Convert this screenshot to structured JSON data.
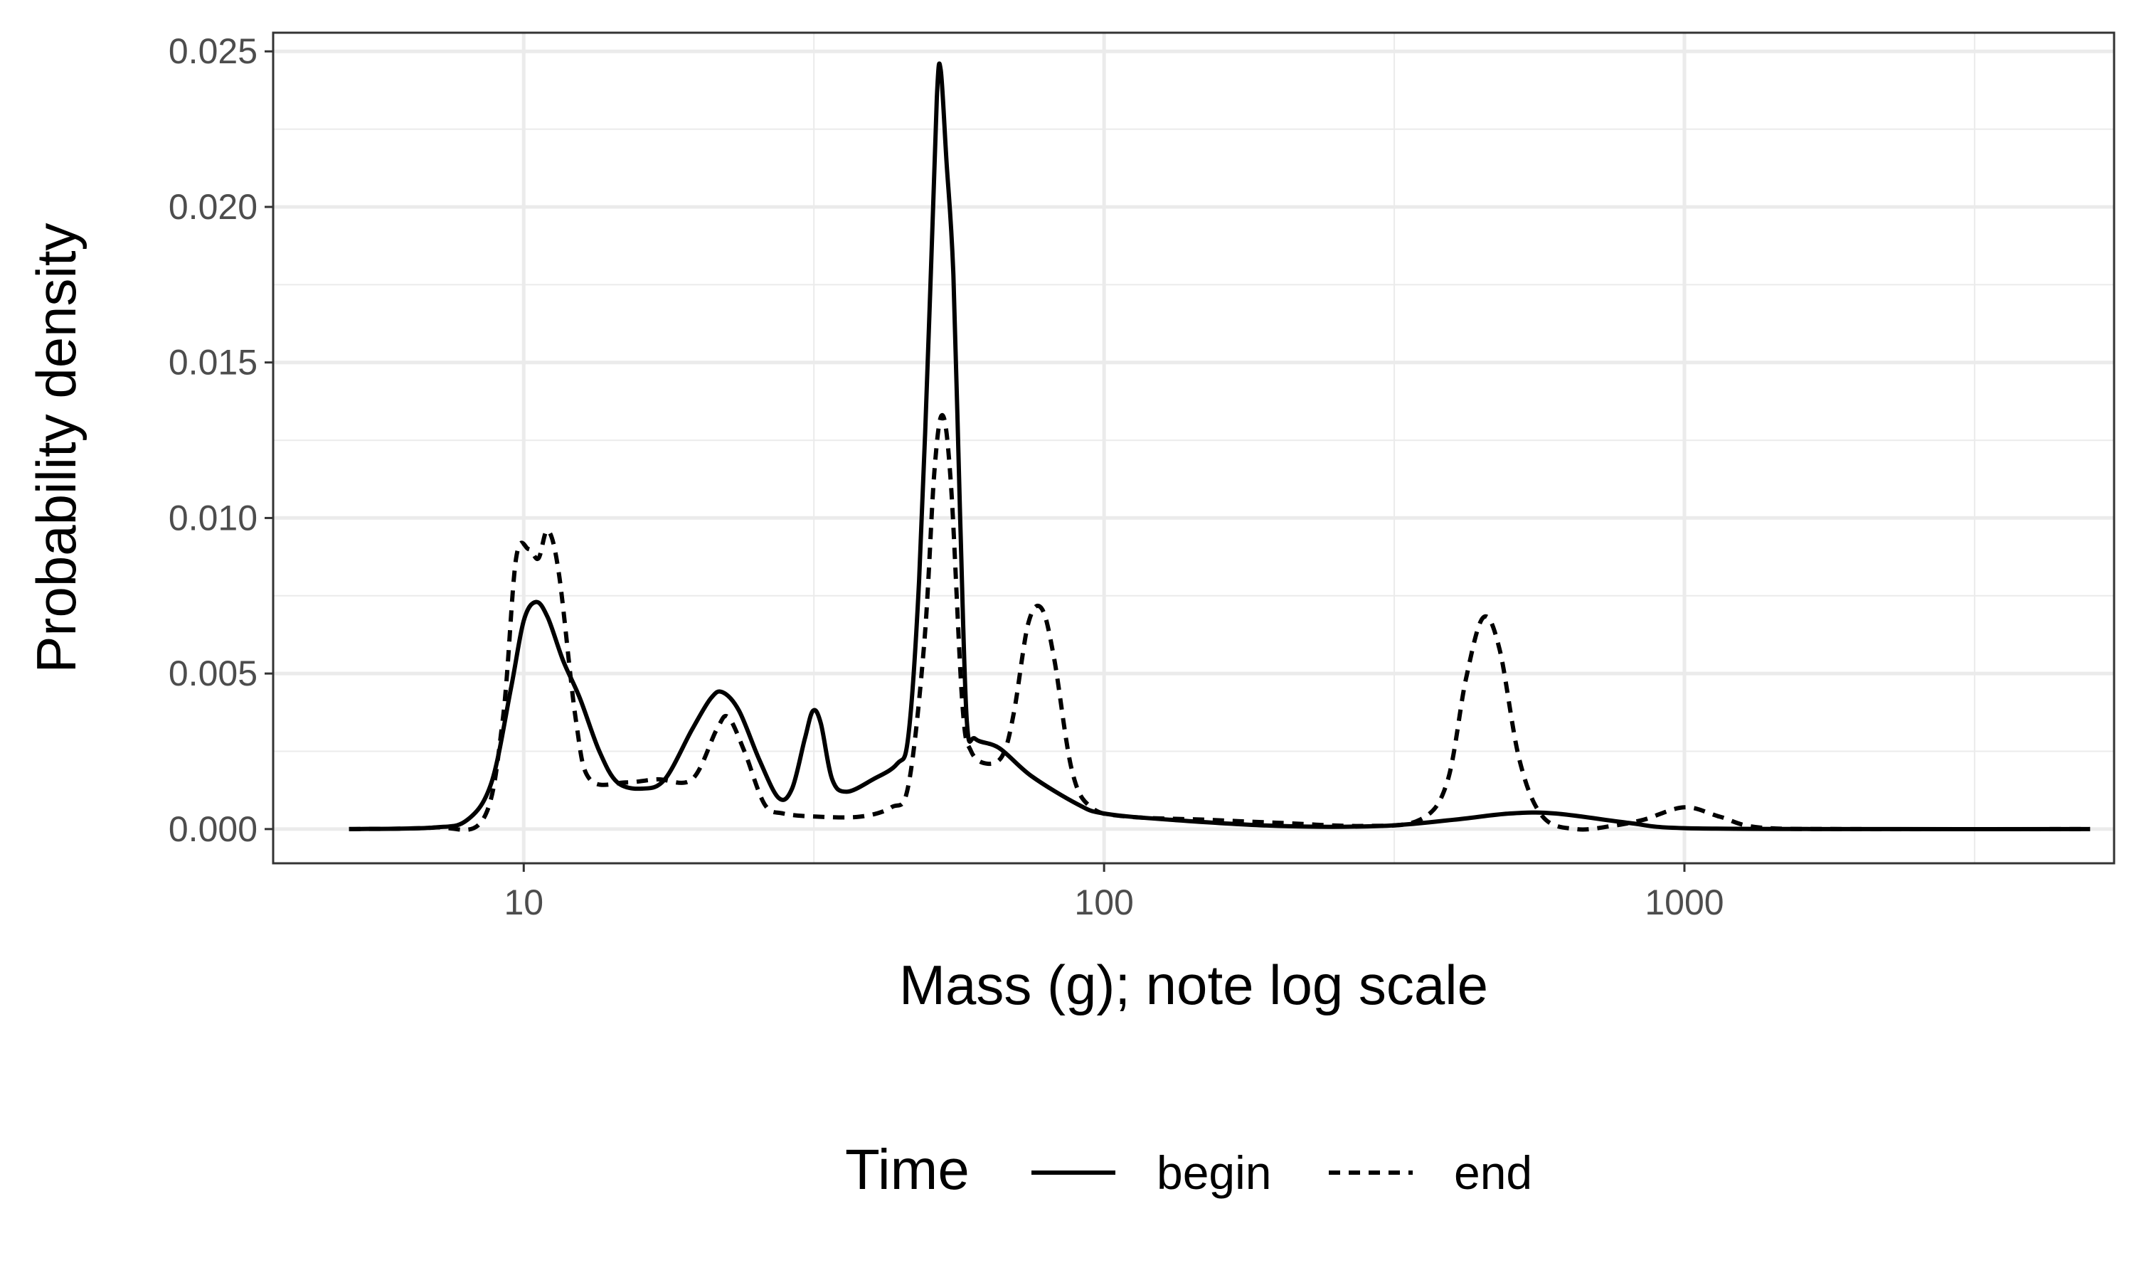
{
  "chart_data": {
    "type": "line",
    "title": "",
    "xlabel": "Mass (g); note log scale",
    "ylabel": "Probability density",
    "x_scale": "log10",
    "xlim": [
      3.7,
      5500
    ],
    "ylim": [
      -0.0011,
      0.0256
    ],
    "x_ticks": [
      10,
      100,
      1000
    ],
    "x_tick_labels": [
      "10",
      "100",
      "1000"
    ],
    "y_ticks": [
      0,
      0.005,
      0.01,
      0.015,
      0.02,
      0.025
    ],
    "y_tick_labels": [
      "0.000",
      "0.005",
      "0.010",
      "0.015",
      "0.020",
      "0.025"
    ],
    "grid": true,
    "legend": {
      "title": "Time",
      "position": "bottom"
    },
    "series": [
      {
        "name": "begin",
        "line_style": "solid",
        "color": "#000000",
        "points": [
          [
            5,
            0
          ],
          [
            7,
            5e-05
          ],
          [
            8,
            0.0003
          ],
          [
            8.8,
            0.0015
          ],
          [
            9.5,
            0.0045
          ],
          [
            10,
            0.0067
          ],
          [
            10.5,
            0.0073
          ],
          [
            11,
            0.0068
          ],
          [
            11.7,
            0.0054
          ],
          [
            12.5,
            0.0042
          ],
          [
            13.5,
            0.0025
          ],
          [
            14.5,
            0.0015
          ],
          [
            16,
            0.0013
          ],
          [
            17.5,
            0.0016
          ],
          [
            19.5,
            0.0032
          ],
          [
            21,
            0.0042
          ],
          [
            22,
            0.0044
          ],
          [
            23.5,
            0.0038
          ],
          [
            25.5,
            0.0022
          ],
          [
            27.5,
            0.001
          ],
          [
            29,
            0.0013
          ],
          [
            30.5,
            0.0029
          ],
          [
            31.5,
            0.0038
          ],
          [
            32.5,
            0.0034
          ],
          [
            34,
            0.0016
          ],
          [
            36,
            0.0012
          ],
          [
            40,
            0.0016
          ],
          [
            44,
            0.0021
          ],
          [
            46,
            0.003
          ],
          [
            48,
            0.008
          ],
          [
            50,
            0.0165
          ],
          [
            51.5,
            0.0235
          ],
          [
            52.3,
            0.0244
          ],
          [
            53.5,
            0.0215
          ],
          [
            55,
            0.0178
          ],
          [
            56.5,
            0.01
          ],
          [
            58,
            0.0035
          ],
          [
            60,
            0.0029
          ],
          [
            66,
            0.0026
          ],
          [
            75,
            0.0017
          ],
          [
            90,
            0.0008
          ],
          [
            100,
            0.0005
          ],
          [
            130,
            0.0003
          ],
          [
            200,
            0.0001
          ],
          [
            300,
            0.0001
          ],
          [
            400,
            0.0003
          ],
          [
            500,
            0.0005
          ],
          [
            600,
            0.0005
          ],
          [
            800,
            0.0002
          ],
          [
            1000,
            3e-05
          ],
          [
            2000,
            0
          ],
          [
            5000,
            0
          ]
        ]
      },
      {
        "name": "end",
        "line_style": "dashed",
        "color": "#000000",
        "points": [
          [
            5,
            0
          ],
          [
            7,
            5e-05
          ],
          [
            8.5,
            0.0003
          ],
          [
            9.2,
            0.0035
          ],
          [
            9.7,
            0.0087
          ],
          [
            10.2,
            0.009
          ],
          [
            10.6,
            0.0087
          ],
          [
            11,
            0.0096
          ],
          [
            11.5,
            0.0082
          ],
          [
            12.3,
            0.0035
          ],
          [
            13,
            0.0016
          ],
          [
            15,
            0.0015
          ],
          [
            17,
            0.0016
          ],
          [
            19.5,
            0.0016
          ],
          [
            21.5,
            0.0032
          ],
          [
            22.5,
            0.0036
          ],
          [
            24,
            0.0025
          ],
          [
            26,
            0.0008
          ],
          [
            28,
            0.0005
          ],
          [
            32,
            0.0004
          ],
          [
            38,
            0.0004
          ],
          [
            43,
            0.0007
          ],
          [
            46,
            0.0014
          ],
          [
            49,
            0.006
          ],
          [
            51,
            0.0115
          ],
          [
            52.7,
            0.0133
          ],
          [
            54.5,
            0.011
          ],
          [
            57,
            0.004
          ],
          [
            59,
            0.0025
          ],
          [
            63,
            0.0021
          ],
          [
            67,
            0.0024
          ],
          [
            70,
            0.0038
          ],
          [
            74,
            0.0066
          ],
          [
            78,
            0.0071
          ],
          [
            82,
            0.0055
          ],
          [
            88,
            0.0019
          ],
          [
            95,
            0.0007
          ],
          [
            110,
            0.0004
          ],
          [
            150,
            0.0003
          ],
          [
            200,
            0.0002
          ],
          [
            280,
            0.0001
          ],
          [
            350,
            0.0003
          ],
          [
            390,
            0.0015
          ],
          [
            420,
            0.0048
          ],
          [
            450,
            0.0068
          ],
          [
            480,
            0.0058
          ],
          [
            520,
            0.0022
          ],
          [
            570,
            0.0004
          ],
          [
            650,
            0
          ],
          [
            750,
            0.0001
          ],
          [
            850,
            0.0003
          ],
          [
            1000,
            0.0007
          ],
          [
            1150,
            0.0004
          ],
          [
            1350,
            5e-05
          ],
          [
            2000,
            0
          ],
          [
            5000,
            0
          ]
        ]
      }
    ]
  }
}
